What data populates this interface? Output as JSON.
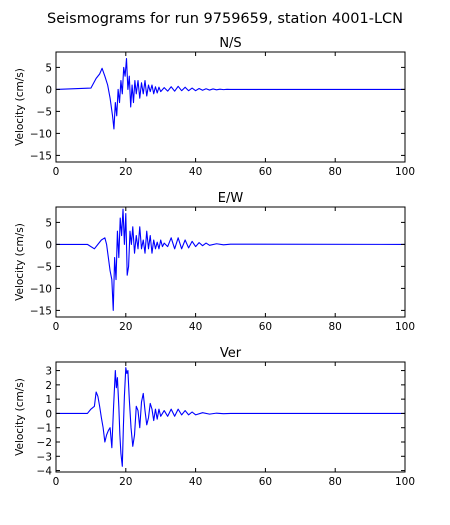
{
  "figure": {
    "title": "Seismograms for run 9759659, station 4001-LCN",
    "line_color": "#0000ff"
  },
  "chart_data": [
    {
      "type": "line",
      "title": "N/S",
      "xlabel": "",
      "ylabel": "Velocity (cm/s)",
      "xlim": [
        0,
        100
      ],
      "ylim": [
        -16.5,
        8.5
      ],
      "xticks": [
        0,
        20,
        40,
        60,
        80,
        100
      ],
      "yticks": [
        5,
        0,
        -5,
        -10,
        -15
      ],
      "grid": false,
      "series": [
        {
          "x": [
            0,
            10,
            11.5,
            12.5,
            13.2,
            14,
            14.8,
            15.5,
            16.2,
            16.6,
            17,
            17.4,
            17.8,
            18.2,
            18.6,
            19,
            19.4,
            19.8,
            20.2,
            20.6,
            21,
            21.4,
            21.8,
            22.2,
            22.6,
            23,
            23.5,
            24,
            24.5,
            25,
            25.5,
            26,
            26.5,
            27,
            27.5,
            28,
            28.5,
            29,
            29.5,
            30,
            31,
            32,
            33,
            34,
            35,
            36,
            37,
            38,
            39,
            40,
            41,
            42,
            43,
            44,
            45,
            46,
            47,
            48,
            49,
            50,
            100
          ],
          "y": [
            0,
            0.3,
            2.5,
            3.5,
            4.8,
            3,
            1,
            -2,
            -6,
            -9,
            -3,
            -6,
            0,
            -3,
            2,
            -1,
            5,
            3,
            7,
            0,
            3,
            -4,
            1,
            -3,
            2,
            -1,
            2,
            -2,
            1.5,
            -1,
            2,
            -1.5,
            1,
            -0.5,
            1,
            -1,
            0.6,
            -0.8,
            0.5,
            -0.5,
            0.4,
            -0.4,
            0.6,
            -0.4,
            0.7,
            -0.3,
            0.5,
            -0.3,
            0.3,
            -0.3,
            0.2,
            -0.2,
            0.15,
            -0.15,
            0.1,
            -0.1,
            0.05,
            -0.05,
            0.02,
            0,
            0
          ]
        }
      ]
    },
    {
      "type": "line",
      "title": "E/W",
      "xlabel": "",
      "ylabel": "Velocity (cm/s)",
      "xlim": [
        0,
        100
      ],
      "ylim": [
        -16.5,
        8.5
      ],
      "xticks": [
        0,
        20,
        40,
        60,
        80,
        100
      ],
      "yticks": [
        5,
        0,
        -5,
        -10,
        -15
      ],
      "grid": false,
      "series": [
        {
          "x": [
            0,
            9,
            11,
            12,
            13,
            14,
            14.5,
            15,
            15.5,
            16,
            16.4,
            16.8,
            17.2,
            17.6,
            18,
            18.4,
            18.8,
            19.2,
            19.6,
            20,
            20.4,
            20.8,
            21.2,
            21.6,
            22,
            22.5,
            23,
            23.5,
            24,
            24.5,
            25,
            25.5,
            26,
            26.5,
            27,
            27.5,
            28,
            28.5,
            29,
            29.5,
            30,
            30.5,
            31,
            32,
            33,
            34,
            35,
            36,
            37,
            38,
            39,
            40,
            41,
            42,
            43,
            44,
            46,
            48,
            50,
            100
          ],
          "y": [
            0,
            0,
            -1,
            0,
            1,
            1.5,
            0,
            -3,
            -6,
            -8,
            -15,
            -3,
            -8,
            3,
            -3,
            6,
            2,
            8,
            0,
            7,
            -7,
            -5,
            3,
            0,
            4,
            -2,
            2,
            -1,
            4,
            -1,
            1,
            -2,
            3,
            -1,
            2,
            -2,
            1,
            -1,
            0.5,
            -1,
            1,
            -0.5,
            0.3,
            -0.5,
            1.5,
            -1,
            1.5,
            -1,
            1,
            -0.8,
            0.7,
            -0.5,
            0.4,
            -0.3,
            0.3,
            -0.2,
            0.15,
            -0.1,
            0.05,
            0
          ]
        }
      ]
    },
    {
      "type": "line",
      "title": "Ver",
      "xlabel": "",
      "ylabel": "Velocity (cm/s)",
      "xlim": [
        0,
        100
      ],
      "ylim": [
        -4.1,
        3.6
      ],
      "xticks": [
        0,
        20,
        40,
        60,
        80,
        100
      ],
      "yticks": [
        3,
        2,
        1,
        0,
        -1,
        -2,
        -3,
        -4
      ],
      "grid": false,
      "series": [
        {
          "x": [
            0,
            9,
            10,
            11,
            11.5,
            12,
            12.5,
            13,
            13.5,
            14,
            14.5,
            15,
            15.5,
            16,
            16.5,
            17,
            17.3,
            17.6,
            18,
            18.3,
            18.6,
            19,
            19.3,
            19.6,
            20,
            20.3,
            20.6,
            21,
            21.5,
            22,
            22.5,
            23,
            23.5,
            24,
            24.5,
            25,
            25.5,
            26,
            26.5,
            27,
            27.5,
            28,
            28.5,
            29,
            29.5,
            30,
            31,
            32,
            33,
            34,
            35,
            36,
            37,
            38,
            39,
            40,
            42,
            44,
            46,
            48,
            50,
            100
          ],
          "y": [
            0,
            0,
            0.3,
            0.5,
            1.5,
            1.2,
            0.5,
            -0.3,
            -1,
            -2,
            -1.5,
            -1.2,
            -1,
            -2.4,
            0.5,
            3,
            1.8,
            2.5,
            0.5,
            -1.5,
            -2.8,
            -3.7,
            -1,
            1.2,
            3.2,
            2.8,
            3,
            1,
            -1,
            -2.3,
            -1.5,
            0.5,
            0.2,
            -1,
            0.8,
            1.4,
            0.2,
            -0.8,
            -0.3,
            0.7,
            0.3,
            -0.5,
            0.3,
            -0.4,
            0.3,
            -0.2,
            0.2,
            -0.2,
            0.3,
            -0.2,
            0.3,
            -0.1,
            0.2,
            -0.1,
            0.1,
            -0.1,
            0.05,
            -0.05,
            0.02,
            -0.02,
            0,
            0
          ]
        }
      ]
    }
  ]
}
